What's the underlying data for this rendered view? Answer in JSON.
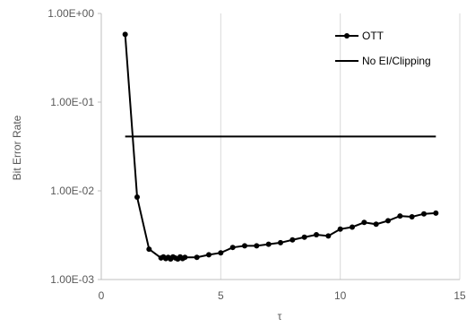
{
  "chart_data": {
    "type": "line",
    "title": "",
    "xlabel": "τ",
    "ylabel": "Bit Error Rate",
    "xlim": [
      0,
      15
    ],
    "ylim": [
      0.001,
      1
    ],
    "yscale": "log",
    "x_ticks": [
      0,
      5,
      10,
      15
    ],
    "x_tick_labels": [
      "0",
      "5",
      "10",
      "15"
    ],
    "y_ticks": [
      0.001,
      0.01,
      0.1,
      1
    ],
    "y_tick_labels": [
      "1.00E-03",
      "1.00E-02",
      "1.00E-01",
      "1.00E+00"
    ],
    "grid": "vertical",
    "legend_position": "top-right",
    "series": [
      {
        "name": "OTT",
        "color": "#000000",
        "marker": "circle",
        "x": [
          1.0,
          1.5,
          2.0,
          2.5,
          2.6,
          2.7,
          2.8,
          2.9,
          3.0,
          3.1,
          3.2,
          3.3,
          3.4,
          3.5,
          4.0,
          4.5,
          5.0,
          5.5,
          6.0,
          6.5,
          7.0,
          7.5,
          8.0,
          8.5,
          9.0,
          9.5,
          10.0,
          10.5,
          11.0,
          11.5,
          12.0,
          12.5,
          13.0,
          13.5,
          14.0
        ],
        "y": [
          0.58,
          0.0085,
          0.0022,
          0.00175,
          0.0018,
          0.00172,
          0.00178,
          0.0017,
          0.0018,
          0.00175,
          0.0017,
          0.0018,
          0.00172,
          0.00178,
          0.00178,
          0.0019,
          0.002,
          0.0023,
          0.0024,
          0.0024,
          0.0025,
          0.0026,
          0.0028,
          0.003,
          0.0032,
          0.0031,
          0.0037,
          0.0039,
          0.0044,
          0.0042,
          0.0046,
          0.0052,
          0.0051,
          0.0055,
          0.0056
        ]
      },
      {
        "name": "No EI/Clipping",
        "color": "#000000",
        "marker": "none",
        "x": [
          1.0,
          14.0
        ],
        "y": [
          0.041,
          0.041
        ]
      }
    ]
  }
}
